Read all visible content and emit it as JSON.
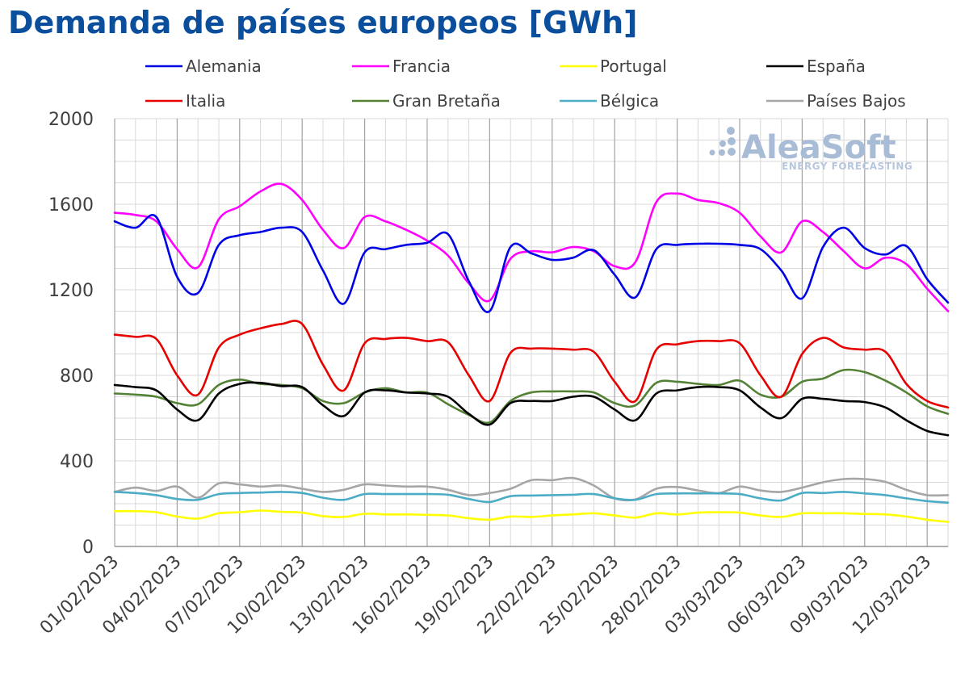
{
  "title": "Demanda de países europeos [GWh]",
  "watermark": {
    "brand": "AleaSoft",
    "tagline": "ENERGY FORECASTING",
    "color": "#a9bcd6"
  },
  "chart_data": {
    "type": "line",
    "title": "Demanda de países europeos [GWh]",
    "xlabel": "",
    "ylabel": "",
    "ylim": [
      0,
      2000
    ],
    "yticks": [
      0,
      400,
      800,
      1200,
      1600,
      2000
    ],
    "x_start": "01/02/2023",
    "x_end": "12/03/2023",
    "x_tick_labels": [
      "01/02/2023",
      "04/02/2023",
      "07/02/2023",
      "10/02/2023",
      "13/02/2023",
      "16/02/2023",
      "19/02/2023",
      "22/02/2023",
      "25/02/2023",
      "28/02/2023",
      "03/03/2023",
      "06/03/2023",
      "09/03/2023",
      "12/03/2023"
    ],
    "grid": true,
    "legend_position": "top",
    "series": [
      {
        "name": "Alemania",
        "color": "#0000e6",
        "values": [
          1520,
          1490,
          1540,
          1260,
          1185,
          1410,
          1455,
          1470,
          1490,
          1470,
          1290,
          1135,
          1375,
          1390,
          1410,
          1420,
          1460,
          1240,
          1100,
          1400,
          1370,
          1340,
          1350,
          1385,
          1270,
          1165,
          1390,
          1410,
          1415,
          1415,
          1410,
          1390,
          1290,
          1160,
          1400,
          1490,
          1395,
          1365,
          1405,
          1250,
          1140
        ]
      },
      {
        "name": "Francia",
        "color": "#ff00ff",
        "values": [
          1560,
          1550,
          1520,
          1390,
          1305,
          1530,
          1590,
          1660,
          1695,
          1620,
          1480,
          1395,
          1540,
          1520,
          1480,
          1430,
          1360,
          1230,
          1150,
          1345,
          1380,
          1375,
          1400,
          1380,
          1310,
          1330,
          1610,
          1650,
          1620,
          1605,
          1560,
          1450,
          1375,
          1520,
          1470,
          1380,
          1300,
          1350,
          1320,
          1205,
          1100
        ]
      },
      {
        "name": "Portugal",
        "color": "#ffff00",
        "values": [
          165,
          165,
          160,
          140,
          130,
          155,
          160,
          168,
          162,
          158,
          142,
          138,
          153,
          150,
          150,
          148,
          145,
          132,
          125,
          140,
          138,
          145,
          150,
          155,
          145,
          135,
          155,
          150,
          158,
          160,
          158,
          145,
          138,
          155,
          155,
          155,
          152,
          150,
          140,
          125,
          115
        ]
      },
      {
        "name": "España",
        "color": "#000000",
        "values": [
          755,
          745,
          730,
          640,
          590,
          715,
          760,
          765,
          750,
          745,
          660,
          610,
          720,
          730,
          720,
          715,
          700,
          620,
          570,
          670,
          680,
          680,
          700,
          700,
          640,
          590,
          715,
          730,
          745,
          745,
          730,
          650,
          600,
          690,
          690,
          680,
          675,
          650,
          590,
          540,
          520
        ]
      },
      {
        "name": "Italia",
        "color": "#e60000",
        "values": [
          990,
          980,
          970,
          800,
          710,
          930,
          990,
          1020,
          1040,
          1040,
          850,
          730,
          950,
          970,
          975,
          960,
          955,
          800,
          680,
          905,
          925,
          925,
          920,
          910,
          770,
          680,
          920,
          945,
          960,
          960,
          950,
          800,
          700,
          900,
          975,
          930,
          920,
          910,
          760,
          680,
          650
        ]
      },
      {
        "name": "Gran Bretaña",
        "color": "#548235",
        "values": [
          715,
          710,
          700,
          670,
          665,
          755,
          780,
          760,
          755,
          740,
          680,
          670,
          720,
          740,
          720,
          720,
          665,
          615,
          580,
          680,
          720,
          725,
          725,
          720,
          670,
          660,
          765,
          770,
          760,
          755,
          775,
          710,
          700,
          770,
          785,
          825,
          815,
          775,
          720,
          655,
          620
        ]
      },
      {
        "name": "Bélgica",
        "color": "#4bacc6",
        "values": [
          255,
          250,
          240,
          222,
          218,
          245,
          250,
          252,
          255,
          250,
          228,
          218,
          245,
          245,
          245,
          245,
          242,
          222,
          208,
          235,
          238,
          240,
          242,
          245,
          225,
          218,
          245,
          248,
          248,
          248,
          245,
          225,
          215,
          250,
          250,
          255,
          248,
          240,
          225,
          212,
          205
        ]
      },
      {
        "name": "Países Bajos",
        "color": "#a6a6a6",
        "values": [
          255,
          275,
          260,
          280,
          228,
          295,
          290,
          280,
          285,
          270,
          255,
          265,
          290,
          285,
          280,
          280,
          265,
          240,
          250,
          270,
          310,
          310,
          320,
          285,
          225,
          220,
          270,
          278,
          262,
          250,
          280,
          262,
          255,
          275,
          300,
          315,
          315,
          302,
          265,
          240,
          240
        ]
      }
    ]
  }
}
